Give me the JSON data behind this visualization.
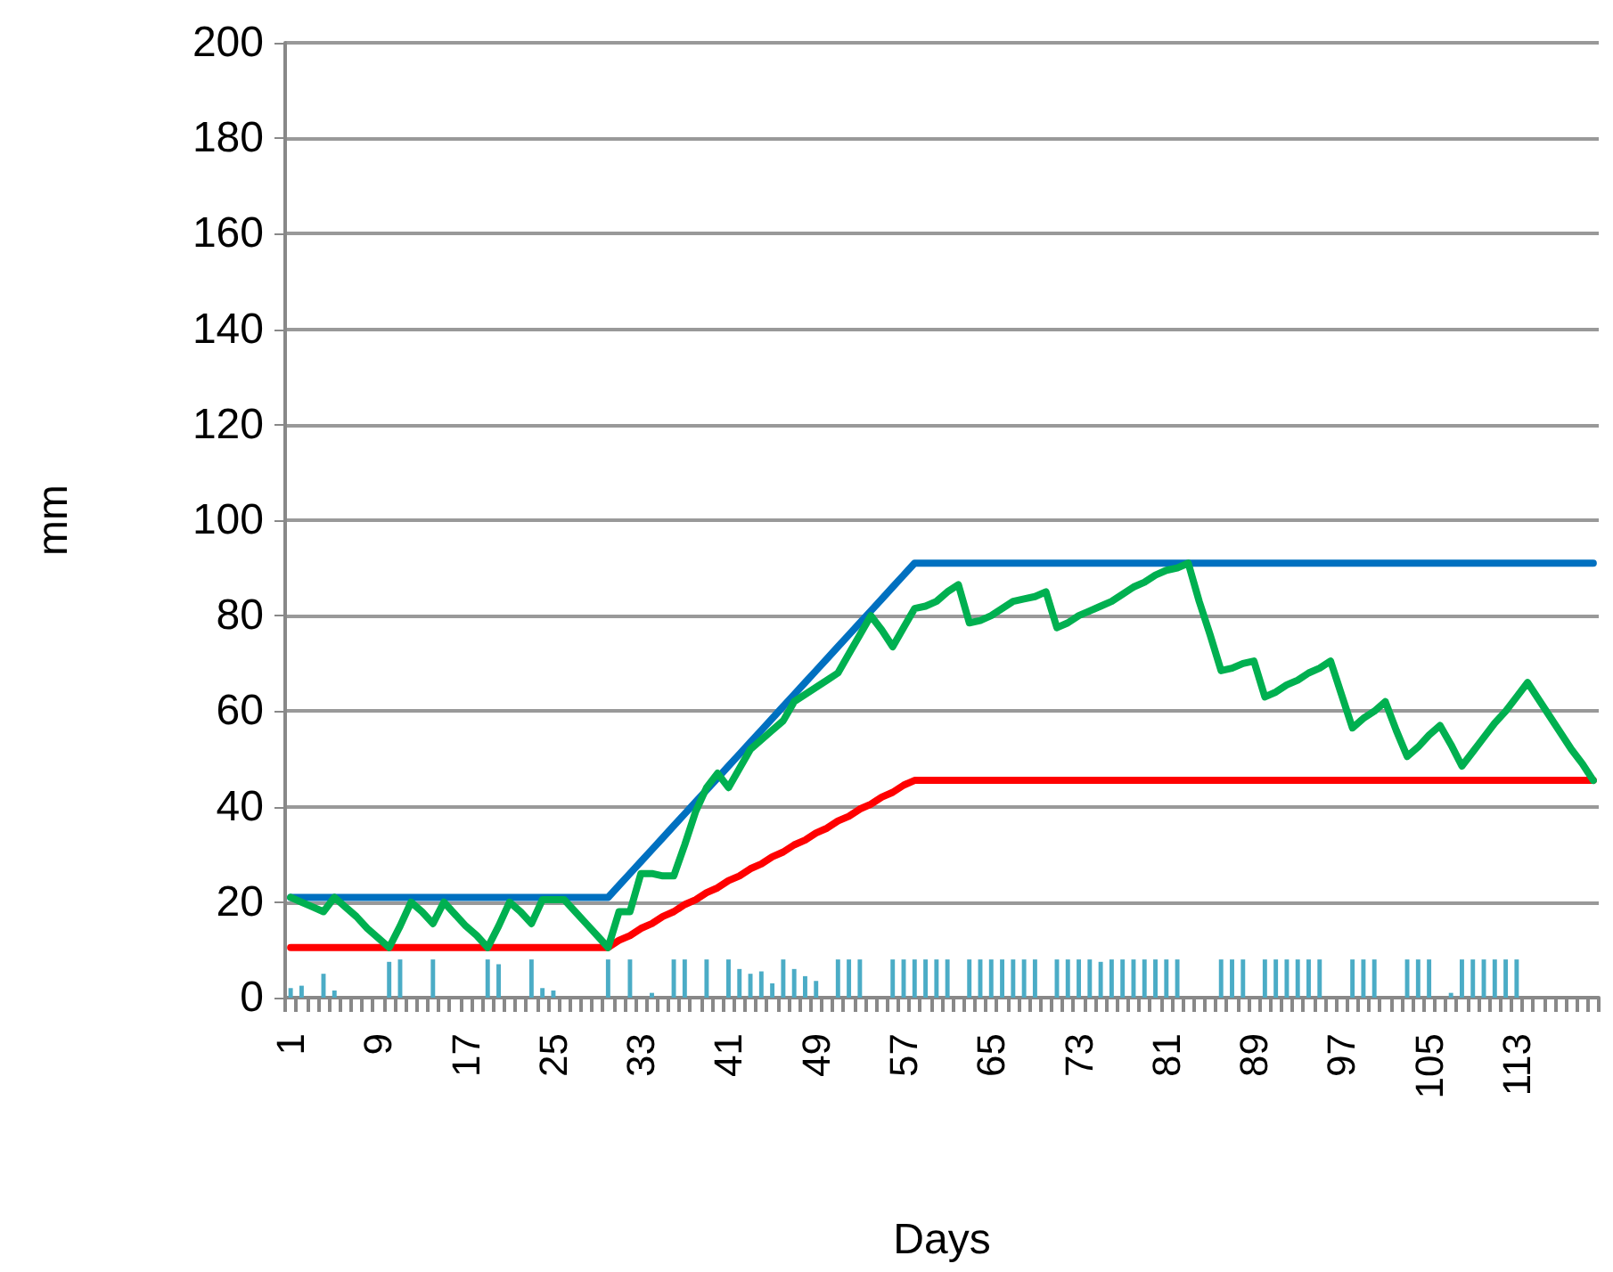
{
  "chart_data": {
    "type": "line",
    "xlabel": "Days",
    "ylabel": "mm",
    "categories": [
      "1",
      null,
      null,
      null,
      null,
      null,
      null,
      null,
      "9",
      null,
      null,
      null,
      null,
      null,
      null,
      null,
      "17",
      null,
      null,
      null,
      null,
      null,
      null,
      null,
      "25",
      null,
      null,
      null,
      null,
      null,
      null,
      null,
      "33",
      null,
      null,
      null,
      null,
      null,
      null,
      null,
      "41",
      null,
      null,
      null,
      null,
      null,
      null,
      null,
      "49",
      null,
      null,
      null,
      null,
      null,
      null,
      null,
      "57",
      null,
      null,
      null,
      null,
      null,
      null,
      null,
      "65",
      null,
      null,
      null,
      null,
      null,
      null,
      null,
      "73",
      null,
      null,
      null,
      null,
      null,
      null,
      null,
      "81",
      null,
      null,
      null,
      null,
      null,
      null,
      null,
      "89",
      null,
      null,
      null,
      null,
      null,
      null,
      null,
      "97",
      null,
      null,
      null,
      null,
      null,
      null,
      null,
      "105",
      null,
      null,
      null,
      null,
      null,
      null,
      null,
      "113",
      null,
      null,
      null,
      null,
      null,
      null,
      null
    ],
    "series": [
      {
        "type": "bar",
        "color": "#4bacc6",
        "values": [
          2,
          2.5,
          null,
          5,
          1.5,
          null,
          null,
          null,
          null,
          7.5,
          8,
          null,
          null,
          8,
          null,
          null,
          null,
          null,
          8,
          7,
          null,
          null,
          8,
          2,
          1.5,
          null,
          null,
          null,
          null,
          8,
          null,
          8,
          null,
          1,
          null,
          8,
          8,
          null,
          8,
          null,
          8,
          6,
          5,
          5.5,
          3,
          8,
          6,
          4.5,
          3.5,
          null,
          8,
          8,
          8,
          null,
          null,
          8,
          8,
          8,
          8,
          8,
          8,
          null,
          8,
          8,
          8,
          8,
          8,
          8,
          8,
          null,
          8,
          8,
          8,
          8,
          7.5,
          8,
          8,
          8,
          8,
          8,
          8,
          8,
          null,
          null,
          null,
          8,
          8,
          8,
          null,
          8,
          8,
          8,
          8,
          8,
          8,
          null,
          null,
          8,
          8,
          8,
          null,
          null,
          8,
          8,
          8,
          null,
          1,
          8,
          8,
          8,
          8,
          8,
          8,
          null,
          null,
          null,
          null,
          null,
          null,
          null
        ]
      },
      {
        "color": "#ff0000",
        "values": [
          10.5,
          10.5,
          10.5,
          10.5,
          10.5,
          10.5,
          10.5,
          10.5,
          10.5,
          10.5,
          10.5,
          10.5,
          10.5,
          10.5,
          10.5,
          10.5,
          10.5,
          10.5,
          10.5,
          10.5,
          10.5,
          10.5,
          10.5,
          10.5,
          10.5,
          10.5,
          10.5,
          10.5,
          10.5,
          10.5,
          12,
          13,
          14.5,
          15.5,
          17,
          18,
          19.5,
          20.5,
          22,
          23,
          24.5,
          25.5,
          27,
          28,
          29.5,
          30.5,
          32,
          33,
          34.5,
          35.5,
          37,
          38,
          39.5,
          40.5,
          42,
          43,
          44.5,
          45.5,
          45.5,
          45.5,
          45.5,
          45.5,
          45.5,
          45.5,
          45.5,
          45.5,
          45.5,
          45.5,
          45.5,
          45.5,
          45.5,
          45.5,
          45.5,
          45.5,
          45.5,
          45.5,
          45.5,
          45.5,
          45.5,
          45.5,
          45.5,
          45.5,
          45.5,
          45.5,
          45.5,
          45.5,
          45.5,
          45.5,
          45.5,
          45.5,
          45.5,
          45.5,
          45.5,
          45.5,
          45.5,
          45.5,
          45.5,
          45.5,
          45.5,
          45.5,
          45.5,
          45.5,
          45.5,
          45.5,
          45.5,
          45.5,
          45.5,
          45.5,
          45.5,
          45.5,
          45.5,
          45.5,
          45.5,
          45.5,
          45.5,
          45.5,
          45.5,
          45.5,
          45.5,
          45.5
        ]
      },
      {
        "color": "#0070c0",
        "values": [
          21,
          21,
          21,
          21,
          21,
          21,
          21,
          21,
          21,
          21,
          21,
          21,
          21,
          21,
          21,
          21,
          21,
          21,
          21,
          21,
          21,
          21,
          21,
          21,
          21,
          21,
          21,
          21,
          21,
          21,
          23.5,
          26,
          28.5,
          31,
          33.5,
          36,
          38.5,
          41,
          43.5,
          46,
          48.5,
          51,
          53.5,
          56,
          58.5,
          61,
          63.5,
          66,
          68.5,
          71,
          73.5,
          76,
          78.5,
          81,
          83.5,
          86,
          88.5,
          91,
          91,
          91,
          91,
          91,
          91,
          91,
          91,
          91,
          91,
          91,
          91,
          91,
          91,
          91,
          91,
          91,
          91,
          91,
          91,
          91,
          91,
          91,
          91,
          91,
          91,
          91,
          91,
          91,
          91,
          91,
          91,
          91,
          91,
          91,
          91,
          91,
          91,
          91,
          91,
          91,
          91,
          91,
          91,
          91,
          91,
          91,
          91,
          91,
          91,
          91,
          91,
          91,
          91,
          91,
          91,
          91,
          91,
          91,
          91,
          91,
          91,
          91
        ]
      },
      {
        "color": "#00b050",
        "values": [
          21,
          20,
          19,
          18,
          21,
          19,
          17,
          14.5,
          12.5,
          10.5,
          15,
          20,
          18,
          15.5,
          20,
          17.5,
          15,
          13,
          10.5,
          15,
          20,
          18,
          15.5,
          20.5,
          20.5,
          20.5,
          18,
          15.5,
          13,
          10.5,
          18,
          18,
          26,
          26,
          25.5,
          25.5,
          32,
          39,
          44,
          47,
          44,
          48,
          52,
          54,
          56,
          58,
          62,
          63.5,
          65,
          66.5,
          68,
          72,
          76,
          80,
          77,
          73.5,
          77.5,
          81.5,
          82,
          83,
          85,
          86.5,
          78.5,
          79,
          80,
          81.5,
          83,
          83.5,
          84,
          85,
          77.5,
          78.5,
          80,
          81,
          82,
          83,
          84.5,
          86,
          87,
          88.5,
          89.5,
          90,
          91,
          83,
          76,
          68.5,
          69,
          70,
          70.5,
          63,
          64,
          65.5,
          66.5,
          68,
          69,
          70.5,
          63.5,
          56.5,
          58.5,
          60,
          62,
          56,
          50.5,
          52.5,
          55,
          57,
          53,
          48.5,
          51.5,
          54.5,
          57.5,
          60,
          63,
          66,
          62.5,
          59,
          55.5,
          52,
          49,
          45.5
        ]
      }
    ],
    "ylim": [
      0,
      200
    ],
    "yticks": [
      0,
      20,
      40,
      60,
      80,
      100,
      120,
      140,
      160,
      180,
      200
    ],
    "grid": "y",
    "marker": "none",
    "line_style": "solid"
  }
}
